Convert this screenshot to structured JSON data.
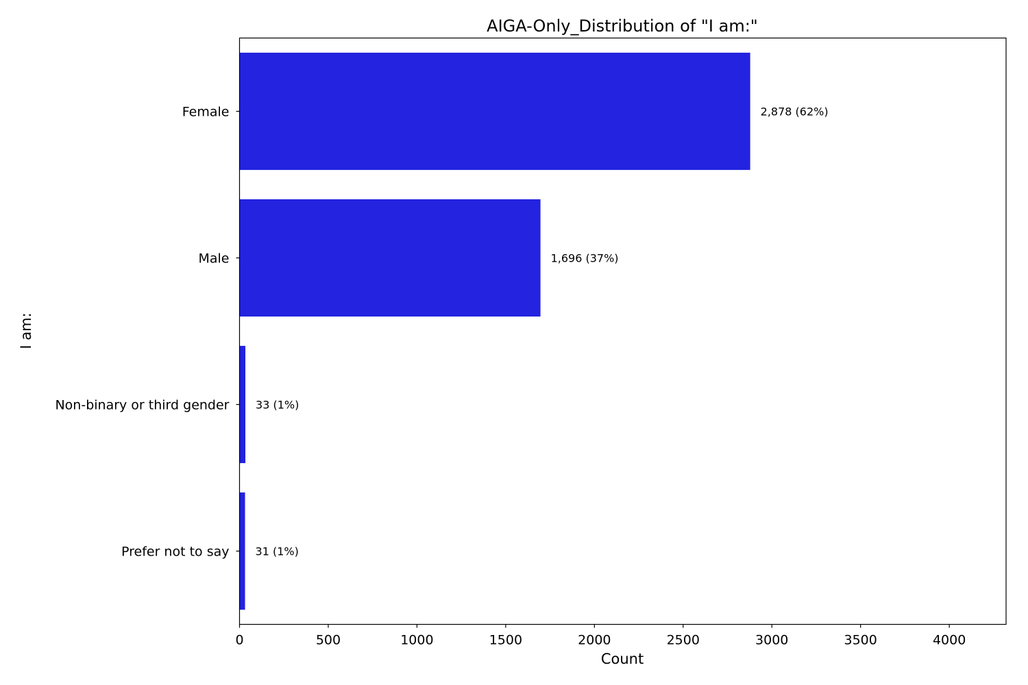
{
  "chart_data": {
    "type": "bar",
    "orientation": "horizontal",
    "title": "AIGA-Only_Distribution of \"I am:\"",
    "xlabel": "Count",
    "ylabel": "I am:",
    "categories": [
      "Female",
      "Male",
      "Non-binary or third gender",
      "Prefer not to say"
    ],
    "values": [
      2878,
      1696,
      33,
      31
    ],
    "data_labels": [
      "2,878 (62%)",
      "1,696 (37%)",
      "33 (1%)",
      "31 (1%)"
    ],
    "xlim": [
      0,
      4320
    ],
    "xticks": [
      0,
      500,
      1000,
      1500,
      2000,
      2500,
      3000,
      3500,
      4000
    ],
    "xtick_labels": [
      "0",
      "500",
      "1000",
      "1500",
      "2000",
      "2500",
      "3000",
      "3500",
      "4000"
    ],
    "bar_color": "#2323e0",
    "grid": false,
    "legend": "none"
  }
}
